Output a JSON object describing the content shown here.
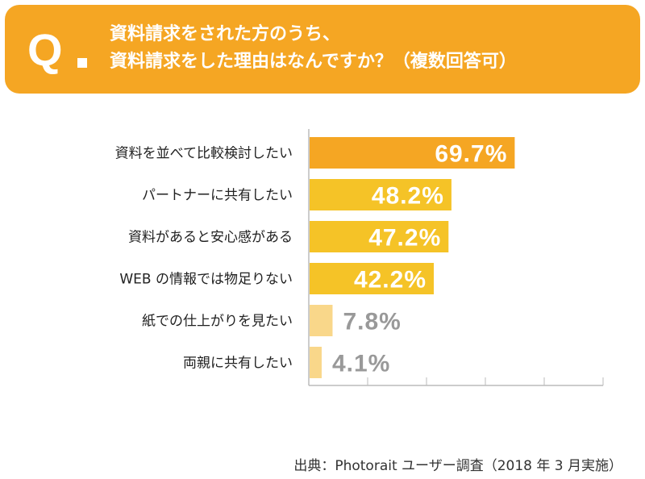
{
  "header": {
    "q_label": "Q",
    "question_line1": "資料請求をされた方のうち、",
    "question_line2": "資料請求をした理由はなんですか？（複数回答可）",
    "bg_color": "#f5a623"
  },
  "chart_data": {
    "type": "bar",
    "orientation": "horizontal",
    "title": "資料請求をした理由はなんですか？（複数回答可）",
    "categories": [
      "資料を並べて比較検討したい",
      "パートナーに共有したい",
      "資料があると安心感がある",
      "WEB の情報では物足りない",
      "紙での仕上がりを見たい",
      "両親に共有したい"
    ],
    "values": [
      69.7,
      48.2,
      47.2,
      42.2,
      7.8,
      4.1
    ],
    "value_labels": [
      "69.7%",
      "48.2%",
      "47.2%",
      "42.2%",
      "7.8%",
      "4.1%"
    ],
    "unit": "%",
    "xlim": [
      0,
      100
    ],
    "colors": [
      "#f5a623",
      "#f5c327",
      "#f5c327",
      "#f5c327",
      "#f9d78a",
      "#f9d78a"
    ],
    "label_colors": [
      "#ffffff",
      "#ffffff",
      "#ffffff",
      "#ffffff",
      "#999999",
      "#999999"
    ],
    "grid": true
  },
  "footer": {
    "source": "出典：Photorait ユーザー調査（2018 年 3 月実施）"
  }
}
